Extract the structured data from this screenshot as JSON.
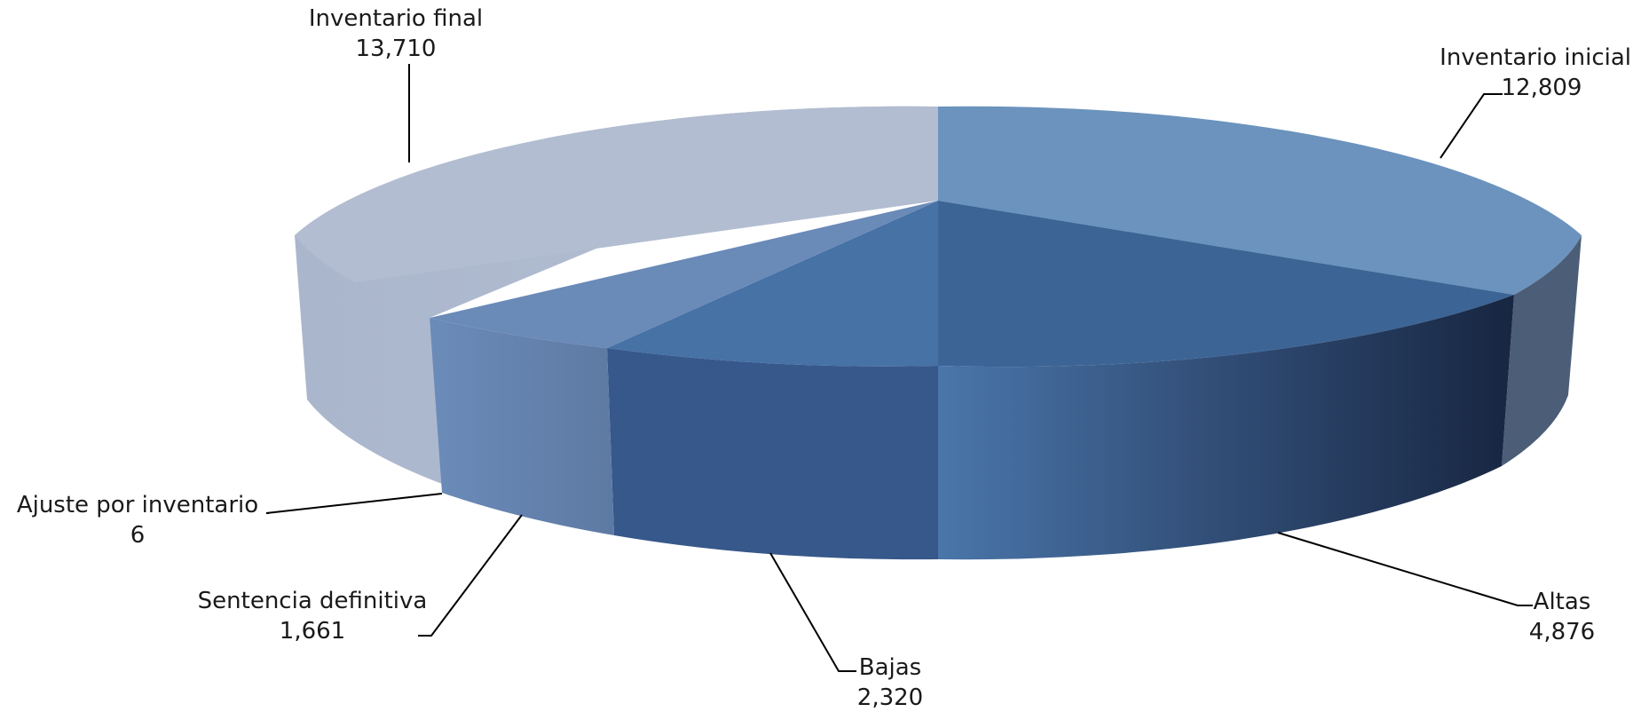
{
  "chart_data": {
    "type": "pie",
    "style": "3d",
    "slices": [
      {
        "label": "Inventario inicial",
        "value": 12809,
        "value_text": "12,809",
        "color": "#6b93bd"
      },
      {
        "label": "Altas",
        "value": 4876,
        "value_text": "4,876",
        "color": "#3c6596"
      },
      {
        "label": "Bajas",
        "value": 2320,
        "value_text": "2,320",
        "color": "#4672a6"
      },
      {
        "label": "Sentencia definitiva",
        "value": 1661,
        "value_text": "1,661",
        "color": "#6a8ab8"
      },
      {
        "label": "Ajuste por inventario",
        "value": 6,
        "value_text": "6",
        "color": "#6a8ab8"
      },
      {
        "label": "Inventario final",
        "value": 13710,
        "value_text": "13,710",
        "color": "#b3bdd1"
      }
    ]
  }
}
